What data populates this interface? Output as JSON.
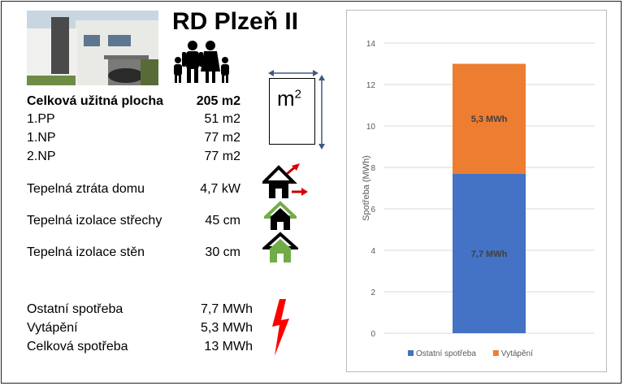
{
  "header": {
    "title": "RD Plzeň II"
  },
  "unit_box": {
    "base": "m",
    "exponent": "2"
  },
  "areas": [
    {
      "label": "Celková užitná plocha",
      "value": "205 m2",
      "bold": true
    },
    {
      "label": "1.PP",
      "value": "51 m2"
    },
    {
      "label": "1.NP",
      "value": "77 m2"
    },
    {
      "label": "2.NP",
      "value": "77 m2"
    }
  ],
  "thermal": [
    {
      "label": "Tepelná ztráta domu",
      "value": "4,7 kW",
      "icon": "house-heat-loss-icon"
    },
    {
      "label": "Tepelná izolace střechy",
      "value": "45 cm",
      "icon": "house-roof-insulation-icon"
    },
    {
      "label": "Tepelná izolace stěn",
      "value": "30 cm",
      "icon": "house-wall-insulation-icon"
    }
  ],
  "consumption": [
    {
      "label": "Ostatní spotřeba",
      "value": "7,7 MWh"
    },
    {
      "label": "Vytápění",
      "value": "5,3 MWh"
    },
    {
      "label": "Celková spotřeba",
      "value": "13 MWh"
    }
  ],
  "colors": {
    "series1": "#4472C4",
    "series2": "#ED7D31",
    "lightning": "#FF0000",
    "green_roof": "#70AD47"
  },
  "chart_data": {
    "type": "bar",
    "stacked": true,
    "categories": [
      ""
    ],
    "series": [
      {
        "name": "Ostatní spotřeba",
        "values": [
          7.7
        ],
        "label": "7,7 MWh"
      },
      {
        "name": "Vytápění",
        "values": [
          5.3
        ],
        "label": "5,3 MWh"
      }
    ],
    "ylabel": "Spotřeba (MWh)",
    "ylim": [
      0,
      14
    ],
    "yticks": [
      "0",
      "2",
      "4",
      "6",
      "8",
      "10",
      "12",
      "14"
    ],
    "grid": true,
    "legend": "bottom"
  }
}
